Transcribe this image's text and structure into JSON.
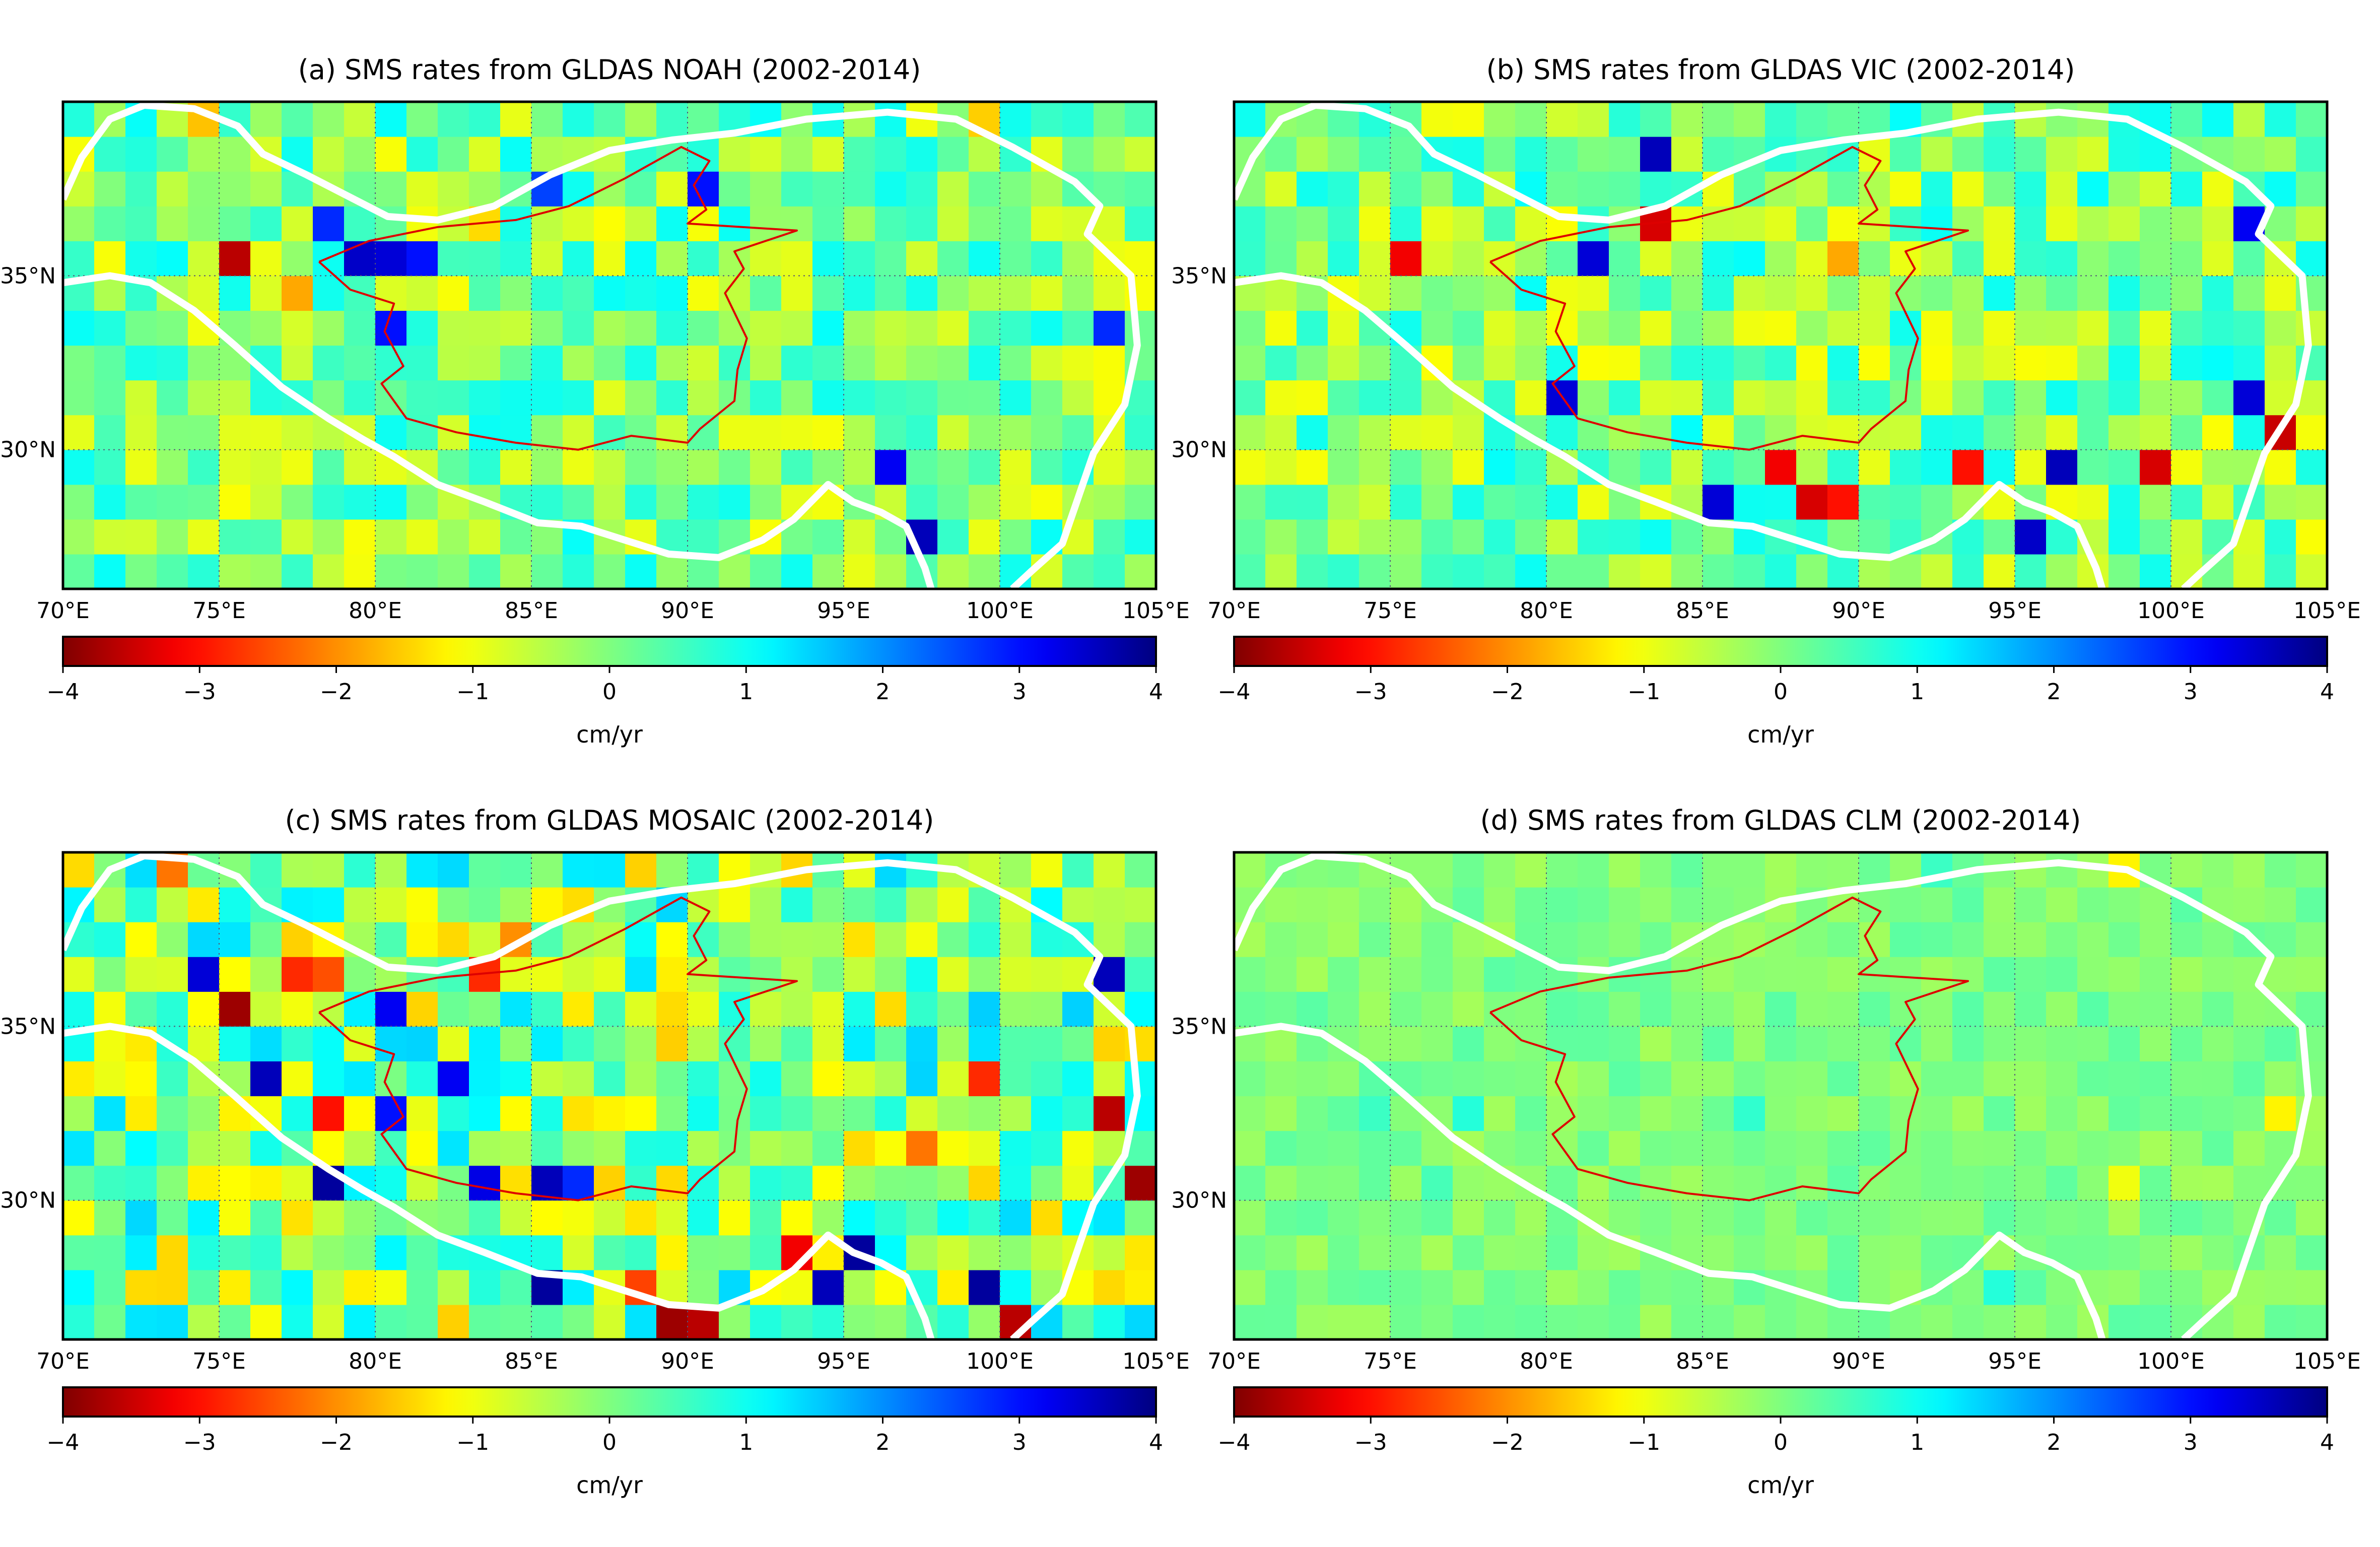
{
  "chart_data": [
    {
      "type": "heatmap",
      "id": "a",
      "title": "(a) SMS rates from GLDAS NOAH (2002-2014)",
      "model": "NOAH",
      "xlim": [
        70,
        105
      ],
      "ylim": [
        26,
        40
      ],
      "x_ticks": [
        70,
        75,
        80,
        85,
        90,
        95,
        100,
        105
      ],
      "x_tick_labels": [
        "70°E",
        "75°E",
        "80°E",
        "85°E",
        "90°E",
        "95°E",
        "100°E",
        "105°E"
      ],
      "y_ticks": [
        30,
        35
      ],
      "y_tick_labels": [
        "30°N",
        "35°N"
      ],
      "colorbar": {
        "label": "cm/yr",
        "range": [
          -4,
          4
        ],
        "ticks": [
          -4,
          -3,
          -2,
          -1,
          0,
          1,
          2,
          3,
          4
        ],
        "tick_labels": [
          "−4",
          "−3",
          "−2",
          "−1",
          "0",
          "1",
          "2",
          "3",
          "4"
        ]
      },
      "notable_cells": [
        {
          "lon": 75,
          "lat": 35,
          "value": -3.6
        },
        {
          "lon": 79,
          "lat": 35,
          "value": 3.5
        },
        {
          "lon": 80,
          "lat": 35,
          "value": 3.4
        },
        {
          "lon": 81,
          "lat": 35,
          "value": 3.0
        },
        {
          "lon": 74,
          "lat": 39,
          "value": -1.6
        },
        {
          "lon": 78,
          "lat": 36,
          "value": 2.8
        },
        {
          "lon": 80,
          "lat": 33,
          "value": 3.0
        },
        {
          "lon": 90,
          "lat": 37,
          "value": 3.0
        },
        {
          "lon": 85,
          "lat": 37,
          "value": 2.6
        },
        {
          "lon": 96,
          "lat": 29,
          "value": 3.2
        },
        {
          "lon": 97,
          "lat": 27,
          "value": 3.6
        },
        {
          "lon": 103,
          "lat": 33,
          "value": 2.8
        },
        {
          "lon": 99,
          "lat": 39,
          "value": -1.5
        },
        {
          "lon": 77,
          "lat": 34,
          "value": -1.8
        },
        {
          "lon": 83,
          "lat": 36,
          "value": -1.4
        }
      ]
    },
    {
      "type": "heatmap",
      "id": "b",
      "title": "(b) SMS rates from GLDAS VIC (2002-2014)",
      "model": "VIC",
      "xlim": [
        70,
        105
      ],
      "ylim": [
        26,
        40
      ],
      "x_ticks": [
        70,
        75,
        80,
        85,
        90,
        95,
        100,
        105
      ],
      "x_tick_labels": [
        "70°E",
        "75°E",
        "80°E",
        "85°E",
        "90°E",
        "95°E",
        "100°E",
        "105°E"
      ],
      "y_ticks": [
        30,
        35
      ],
      "y_tick_labels": [
        "30°N",
        "35°N"
      ],
      "colorbar": {
        "label": "cm/yr",
        "range": [
          -4,
          4
        ],
        "ticks": [
          -4,
          -3,
          -2,
          -1,
          0,
          1,
          2,
          3,
          4
        ],
        "tick_labels": [
          "−4",
          "−3",
          "−2",
          "−1",
          "0",
          "1",
          "2",
          "3",
          "4"
        ]
      },
      "notable_cells": [
        {
          "lon": 75,
          "lat": 35,
          "value": -3.2
        },
        {
          "lon": 83,
          "lat": 36,
          "value": -3.4
        },
        {
          "lon": 81,
          "lat": 35,
          "value": 3.4
        },
        {
          "lon": 83,
          "lat": 38,
          "value": 3.6
        },
        {
          "lon": 87,
          "lat": 29,
          "value": -3.2
        },
        {
          "lon": 88,
          "lat": 28,
          "value": -3.4
        },
        {
          "lon": 89,
          "lat": 28,
          "value": -3.0
        },
        {
          "lon": 93,
          "lat": 29,
          "value": -3.0
        },
        {
          "lon": 96,
          "lat": 29,
          "value": 3.6
        },
        {
          "lon": 99,
          "lat": 29,
          "value": -3.4
        },
        {
          "lon": 103,
          "lat": 30,
          "value": -3.5
        },
        {
          "lon": 102,
          "lat": 31,
          "value": 3.4
        },
        {
          "lon": 102,
          "lat": 36,
          "value": 3.2
        },
        {
          "lon": 85,
          "lat": 28,
          "value": 3.4
        },
        {
          "lon": 89,
          "lat": 35,
          "value": -1.8
        },
        {
          "lon": 80,
          "lat": 31,
          "value": 3.4
        },
        {
          "lon": 95,
          "lat": 27,
          "value": 3.5
        }
      ]
    },
    {
      "type": "heatmap",
      "id": "c",
      "title": "(c) SMS rates from GLDAS MOSAIC (2002-2014)",
      "model": "MOSAIC",
      "xlim": [
        70,
        105
      ],
      "ylim": [
        26,
        40
      ],
      "x_ticks": [
        70,
        75,
        80,
        85,
        90,
        95,
        100,
        105
      ],
      "x_tick_labels": [
        "70°E",
        "75°E",
        "80°E",
        "85°E",
        "90°E",
        "95°E",
        "100°E",
        "105°E"
      ],
      "y_ticks": [
        30,
        35
      ],
      "y_tick_labels": [
        "30°N",
        "35°N"
      ],
      "colorbar": {
        "label": "cm/yr",
        "range": [
          -4,
          4
        ],
        "ticks": [
          -4,
          -3,
          -2,
          -1,
          0,
          1,
          2,
          3,
          4
        ],
        "tick_labels": [
          "−4",
          "−3",
          "−2",
          "−1",
          "0",
          "1",
          "2",
          "3",
          "4"
        ]
      },
      "notable_cells": [
        {
          "lon": 75,
          "lat": 35,
          "value": -3.8
        },
        {
          "lon": 73,
          "lat": 39,
          "value": -2.2
        },
        {
          "lon": 77,
          "lat": 36,
          "value": -2.8
        },
        {
          "lon": 78,
          "lat": 36,
          "value": -2.5
        },
        {
          "lon": 83,
          "lat": 36,
          "value": -2.8
        },
        {
          "lon": 84,
          "lat": 37,
          "value": -2.0
        },
        {
          "lon": 80,
          "lat": 35,
          "value": 3.2
        },
        {
          "lon": 76,
          "lat": 33,
          "value": 3.6
        },
        {
          "lon": 78,
          "lat": 32,
          "value": -3.0
        },
        {
          "lon": 78,
          "lat": 30,
          "value": 3.8
        },
        {
          "lon": 80,
          "lat": 32,
          "value": 3.0
        },
        {
          "lon": 83,
          "lat": 30,
          "value": 3.3
        },
        {
          "lon": 85,
          "lat": 30,
          "value": 3.6
        },
        {
          "lon": 86,
          "lat": 30,
          "value": 2.8
        },
        {
          "lon": 85,
          "lat": 27,
          "value": 3.8
        },
        {
          "lon": 88,
          "lat": 27,
          "value": -2.6
        },
        {
          "lon": 89,
          "lat": 26,
          "value": -3.8
        },
        {
          "lon": 90,
          "lat": 26,
          "value": -3.6
        },
        {
          "lon": 93,
          "lat": 28,
          "value": -3.2
        },
        {
          "lon": 95,
          "lat": 28,
          "value": 3.8
        },
        {
          "lon": 94,
          "lat": 27,
          "value": 3.6
        },
        {
          "lon": 99,
          "lat": 27,
          "value": 3.8
        },
        {
          "lon": 100,
          "lat": 26,
          "value": -3.6
        },
        {
          "lon": 99,
          "lat": 33,
          "value": -2.8
        },
        {
          "lon": 103,
          "lat": 32,
          "value": -3.6
        },
        {
          "lon": 104,
          "lat": 30,
          "value": -3.8
        },
        {
          "lon": 103,
          "lat": 36,
          "value": 3.6
        },
        {
          "lon": 74,
          "lat": 36,
          "value": 3.4
        },
        {
          "lon": 82,
          "lat": 33,
          "value": 3.2
        },
        {
          "lon": 97,
          "lat": 31,
          "value": -2.2
        }
      ]
    },
    {
      "type": "heatmap",
      "id": "d",
      "title": "(d) SMS rates from GLDAS CLM (2002-2014)",
      "model": "CLM",
      "xlim": [
        70,
        105
      ],
      "ylim": [
        26,
        40
      ],
      "x_ticks": [
        70,
        75,
        80,
        85,
        90,
        95,
        100,
        105
      ],
      "x_tick_labels": [
        "70°E",
        "75°E",
        "80°E",
        "85°E",
        "90°E",
        "95°E",
        "100°E",
        "105°E"
      ],
      "y_ticks": [
        30,
        35
      ],
      "y_tick_labels": [
        "30°N",
        "35°N"
      ],
      "colorbar": {
        "label": "cm/yr",
        "range": [
          -4,
          4
        ],
        "ticks": [
          -4,
          -3,
          -2,
          -1,
          0,
          1,
          2,
          3,
          4
        ],
        "tick_labels": [
          "−4",
          "−3",
          "−2",
          "−1",
          "0",
          "1",
          "2",
          "3",
          "4"
        ]
      },
      "notable_cells": [
        {
          "lon": 98,
          "lat": 39,
          "value": -1.2
        },
        {
          "lon": 103,
          "lat": 32,
          "value": -1.2
        },
        {
          "lon": 98,
          "lat": 30,
          "value": -1.0
        },
        {
          "lon": 74,
          "lat": 32,
          "value": 0.6
        },
        {
          "lon": 77,
          "lat": 32,
          "value": 0.8
        },
        {
          "lon": 86,
          "lat": 32,
          "value": 0.7
        },
        {
          "lon": 94,
          "lat": 27,
          "value": 0.8
        },
        {
          "lon": 92,
          "lat": 39,
          "value": 0.6
        },
        {
          "lon": 76,
          "lat": 30,
          "value": 0.5
        }
      ]
    }
  ]
}
